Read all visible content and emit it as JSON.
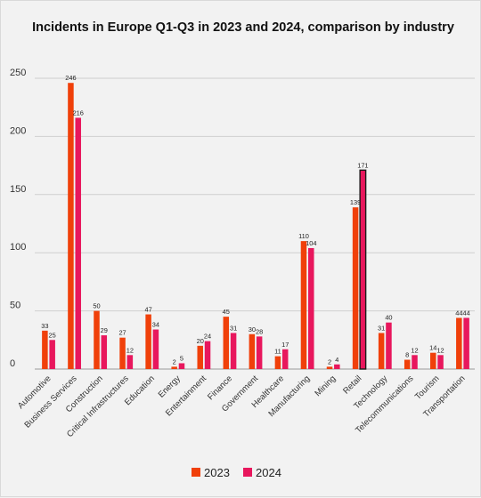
{
  "chart_data": {
    "type": "bar",
    "title": "Incidents in Europe Q1-Q3 in 2023 and 2024, comparison by industry",
    "xlabel": "",
    "ylabel": "",
    "ylim": [
      0,
      250
    ],
    "yticks": [
      0,
      50,
      100,
      150,
      200,
      250
    ],
    "grid": true,
    "legend_position": "bottom-center",
    "categories": [
      "Automotive",
      "Business Services",
      "Construction",
      "Critical Infrastructures",
      "Education",
      "Energy",
      "Entertainment",
      "Finance",
      "Government",
      "Healthcare",
      "Manufacturing",
      "Mining",
      "Retail",
      "Technology",
      "Telecommunications",
      "Tourism",
      "Transportation"
    ],
    "series": [
      {
        "name": "2023",
        "color": "#f0400a",
        "values": [
          33,
          246,
          50,
          27,
          47,
          2,
          20,
          45,
          30,
          11,
          110,
          2,
          139,
          31,
          8,
          14,
          44
        ]
      },
      {
        "name": "2024",
        "color": "#e8175d",
        "values": [
          25,
          216,
          29,
          12,
          34,
          5,
          24,
          31,
          28,
          17,
          104,
          4,
          171,
          40,
          12,
          12,
          44
        ]
      }
    ],
    "highlighted_bar": {
      "category": "Retail",
      "series": "2024"
    }
  }
}
